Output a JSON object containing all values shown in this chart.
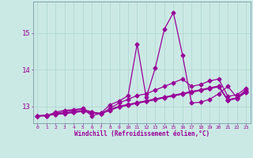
{
  "x": [
    0,
    1,
    2,
    3,
    4,
    5,
    6,
    7,
    8,
    9,
    10,
    11,
    12,
    13,
    14,
    15,
    16,
    17,
    18,
    19,
    20,
    21,
    22,
    23
  ],
  "line1": [
    12.75,
    12.75,
    12.85,
    12.9,
    12.92,
    12.95,
    12.75,
    12.82,
    13.05,
    13.15,
    13.3,
    14.7,
    13.25,
    14.05,
    15.1,
    15.55,
    14.4,
    13.1,
    13.12,
    13.2,
    13.35,
    13.55,
    13.25,
    13.45
  ],
  "line2": [
    12.75,
    12.75,
    12.82,
    12.86,
    12.9,
    12.93,
    12.86,
    12.8,
    12.95,
    13.1,
    13.2,
    13.3,
    13.35,
    13.45,
    13.55,
    13.65,
    13.75,
    13.55,
    13.6,
    13.7,
    13.75,
    13.28,
    13.32,
    13.5
  ],
  "line3": [
    12.75,
    12.76,
    12.79,
    12.81,
    12.84,
    12.87,
    12.84,
    12.81,
    12.9,
    12.99,
    13.04,
    13.09,
    13.14,
    13.19,
    13.24,
    13.29,
    13.34,
    13.39,
    13.44,
    13.49,
    13.54,
    13.17,
    13.22,
    13.39
  ],
  "line4": [
    12.75,
    12.76,
    12.79,
    12.82,
    12.85,
    12.88,
    12.85,
    12.82,
    12.91,
    13.0,
    13.05,
    13.1,
    13.15,
    13.2,
    13.25,
    13.3,
    13.35,
    13.4,
    13.45,
    13.5,
    13.55,
    13.18,
    13.23,
    13.4
  ],
  "line5": [
    12.75,
    12.77,
    12.8,
    12.83,
    12.86,
    12.89,
    12.83,
    12.8,
    12.92,
    13.01,
    13.06,
    13.11,
    13.16,
    13.21,
    13.26,
    13.31,
    13.36,
    13.41,
    13.46,
    13.51,
    13.56,
    13.19,
    13.24,
    13.41
  ],
  "bg_color": "#cbe9e4",
  "line_color": "#990099",
  "grid_color": "#b0d8d3",
  "xlabel": "Windchill (Refroidissement éolien,°C)",
  "ylim_min": 12.55,
  "ylim_max": 15.85,
  "xlim_min": -0.5,
  "xlim_max": 23.5,
  "yticks": [
    13,
    14,
    15
  ],
  "xticks": [
    0,
    1,
    2,
    3,
    4,
    5,
    6,
    7,
    8,
    9,
    10,
    11,
    12,
    13,
    14,
    15,
    16,
    17,
    18,
    19,
    20,
    21,
    22,
    23
  ]
}
